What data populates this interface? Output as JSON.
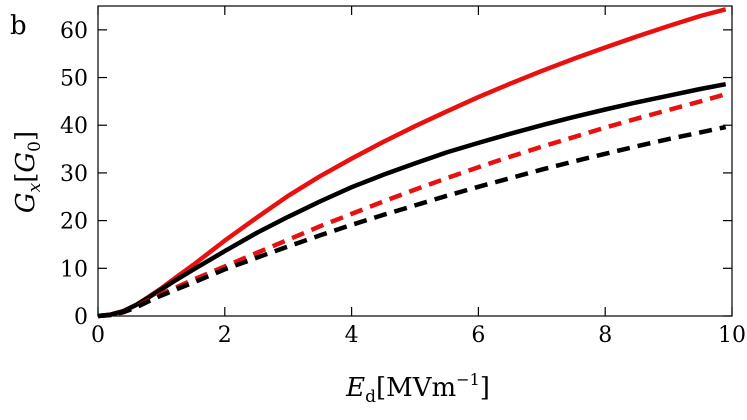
{
  "chart_data": {
    "type": "line",
    "panel_label": "b",
    "xlabel": {
      "main": "E",
      "sub": "d",
      "unit": "[MVm",
      "sup": "−1",
      "close": "]"
    },
    "ylabel": {
      "main": "G",
      "sub": "x",
      "open": "[",
      "unit_main": "G",
      "unit_sub": "0",
      "close": "]"
    },
    "xlim": [
      0,
      10
    ],
    "ylim": [
      0,
      65
    ],
    "x_ticks": [
      0,
      2,
      4,
      6,
      8,
      10
    ],
    "y_ticks": [
      0,
      10,
      20,
      30,
      40,
      50,
      60
    ],
    "grid": false,
    "series": [
      {
        "color": "#e8110f",
        "dash": "solid",
        "x": [
          0,
          0.2,
          0.4,
          0.6,
          0.8,
          1.0,
          1.2,
          1.5,
          2.0,
          2.5,
          3.0,
          3.5,
          4.0,
          4.5,
          5.0,
          5.5,
          6.0,
          6.5,
          7.0,
          7.5,
          8.0,
          8.5,
          9.0,
          9.5,
          9.9
        ],
        "y": [
          0,
          0.3,
          1.0,
          2.3,
          4.0,
          5.8,
          7.8,
          10.7,
          15.8,
          20.6,
          25.2,
          29.3,
          33.0,
          36.5,
          39.8,
          42.9,
          45.9,
          48.7,
          51.4,
          53.9,
          56.3,
          58.6,
          60.8,
          62.9,
          64.3
        ]
      },
      {
        "color": "#000000",
        "dash": "solid",
        "x": [
          0,
          0.2,
          0.4,
          0.6,
          0.8,
          1.0,
          1.2,
          1.5,
          2.0,
          2.5,
          3.0,
          3.5,
          4.0,
          4.5,
          5.0,
          5.5,
          6.0,
          6.5,
          7.0,
          7.5,
          8.0,
          8.5,
          9.0,
          9.5,
          9.9
        ],
        "y": [
          0,
          0.3,
          1.0,
          2.3,
          3.9,
          5.6,
          7.3,
          9.7,
          13.6,
          17.4,
          20.8,
          24.0,
          27.0,
          29.6,
          32.0,
          34.3,
          36.3,
          38.2,
          40.0,
          41.7,
          43.3,
          44.8,
          46.2,
          47.6,
          48.6
        ]
      },
      {
        "color": "#e8110f",
        "dash": "dashed",
        "x": [
          0,
          0.2,
          0.4,
          0.6,
          0.8,
          1.0,
          1.2,
          1.5,
          2.0,
          2.5,
          3.0,
          3.5,
          4.0,
          4.5,
          5.0,
          5.5,
          6.0,
          6.5,
          7.0,
          7.5,
          8.0,
          8.5,
          9.0,
          9.5,
          9.9
        ],
        "y": [
          0,
          0.2,
          0.8,
          1.9,
          3.3,
          4.6,
          5.8,
          7.6,
          10.4,
          13.2,
          16.0,
          18.8,
          21.4,
          24.0,
          26.5,
          28.9,
          31.2,
          33.4,
          35.5,
          37.5,
          39.5,
          41.4,
          43.2,
          45.0,
          46.5
        ]
      },
      {
        "color": "#000000",
        "dash": "dashed",
        "x": [
          0,
          0.2,
          0.4,
          0.6,
          0.8,
          1.0,
          1.2,
          1.5,
          2.0,
          2.5,
          3.0,
          3.5,
          4.0,
          4.5,
          5.0,
          5.5,
          6.0,
          6.5,
          7.0,
          7.5,
          8.0,
          8.5,
          9.0,
          9.5,
          9.9
        ],
        "y": [
          0,
          0.2,
          0.8,
          1.8,
          3.1,
          4.3,
          5.4,
          7.0,
          9.8,
          12.2,
          14.6,
          16.9,
          19.1,
          21.2,
          23.2,
          25.2,
          27.1,
          28.9,
          30.7,
          32.4,
          34.0,
          35.6,
          37.1,
          38.5,
          39.6
        ]
      }
    ]
  }
}
